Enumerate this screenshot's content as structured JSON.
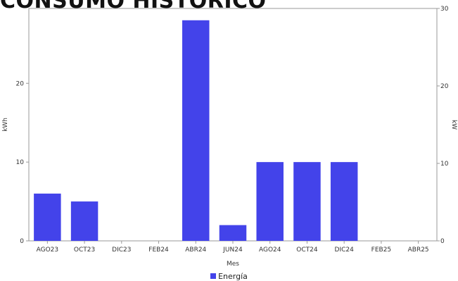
{
  "page": {
    "title": "CONSUMO HISTORICO"
  },
  "chart_data": {
    "type": "bar",
    "title": "CONSUMO HISTORICO",
    "xlabel": "Mes",
    "ylabel": "kWh",
    "ylabel_right": "kW",
    "categories": [
      "AGO23",
      "OCT23",
      "DIC23",
      "FEB24",
      "ABR24",
      "JUN24",
      "AGO24",
      "OCT24",
      "DIC24",
      "FEB25",
      "ABR25"
    ],
    "series": [
      {
        "name": "Energía",
        "values": [
          6,
          5,
          0,
          0,
          28,
          2,
          10,
          10,
          10,
          0,
          0
        ]
      }
    ],
    "ylim": [
      0,
      29.5
    ],
    "yticks": [
      "0",
      "10",
      "20"
    ],
    "ylim_right": [
      0,
      30
    ],
    "yticks_right": [
      "0",
      "10",
      "20",
      "30"
    ],
    "grid": false,
    "legend_position": "bottom",
    "colors": {
      "bar": "#4343ea"
    }
  }
}
